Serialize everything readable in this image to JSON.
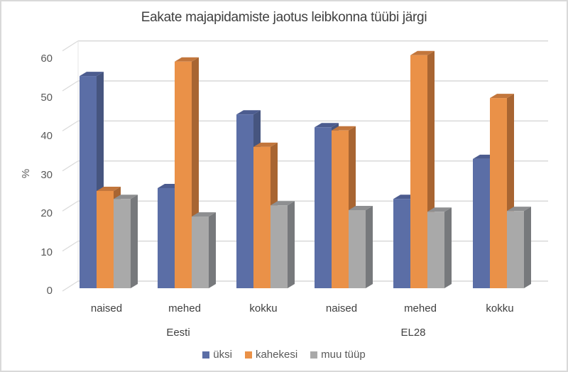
{
  "chart_data": {
    "type": "bar",
    "title": "Eakate majapidamiste jaotus leibkonna tüübi järgi",
    "xlabel": "",
    "ylabel": "%",
    "ylim": [
      0,
      60
    ],
    "yticks": [
      0,
      10,
      20,
      30,
      40,
      50,
      60
    ],
    "grid": true,
    "legend_position": "bottom",
    "three_d": true,
    "categories": [
      "naised",
      "mehed",
      "kokku",
      "naised",
      "mehed",
      "kokku"
    ],
    "category_groups": [
      {
        "label": "Eesti",
        "categories": [
          "naised",
          "mehed",
          "kokku"
        ]
      },
      {
        "label": "EL28",
        "categories": [
          "naised",
          "mehed",
          "kokku"
        ]
      }
    ],
    "series": [
      {
        "name": "üksi",
        "color": "#5b6ea6",
        "side": "#46557f",
        "top": "#4c5c8f",
        "values": [
          53.0,
          25.0,
          43.4,
          40.2,
          22.3,
          32.3
        ]
      },
      {
        "name": "kahekesi",
        "color": "#ea9148",
        "side": "#a86532",
        "top": "#c2763c",
        "values": [
          24.3,
          56.6,
          35.3,
          39.4,
          58.2,
          47.5
        ]
      },
      {
        "name": "muu tüüp",
        "color": "#a9a9a9",
        "side": "#77797c",
        "top": "#8e8f91",
        "values": [
          22.3,
          17.9,
          20.7,
          19.5,
          19.1,
          19.3
        ]
      }
    ]
  }
}
